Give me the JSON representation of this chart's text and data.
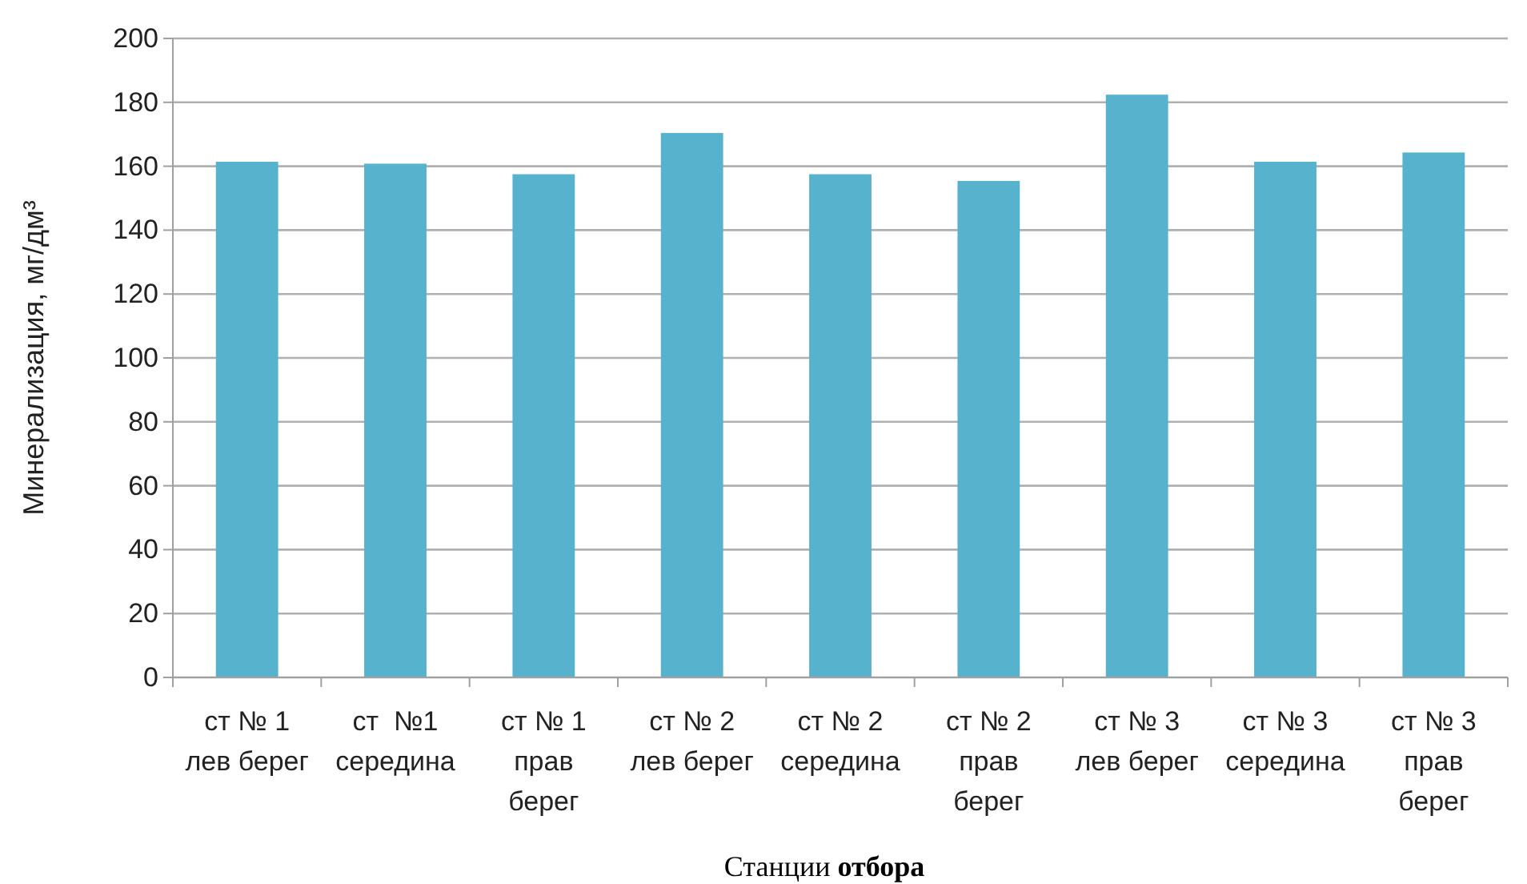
{
  "chart_data": {
    "type": "bar",
    "xlabel": "Станции отбора",
    "ylabel": "Минерализация, мг/дм³",
    "categories": [
      "ст № 1\nлев берег",
      "ст  №1\nсередина",
      "ст № 1\nправ\nберег",
      "ст № 2\nлев берег",
      "ст № 2\nсередина",
      "ст № 2\nправ\nберег",
      "ст № 3\nлев берег",
      "ст № 3\nсередина",
      "ст № 3\nправ\nберег"
    ],
    "values": [
      161.4,
      160.8,
      157.5,
      170.4,
      157.5,
      155.4,
      182.4,
      161.4,
      164.3
    ],
    "color": "#57b3cd",
    "ylim": [
      0,
      200
    ],
    "yticks": [
      0,
      20,
      40,
      60,
      80,
      100,
      120,
      140,
      160,
      180,
      200
    ],
    "grid": "y"
  }
}
